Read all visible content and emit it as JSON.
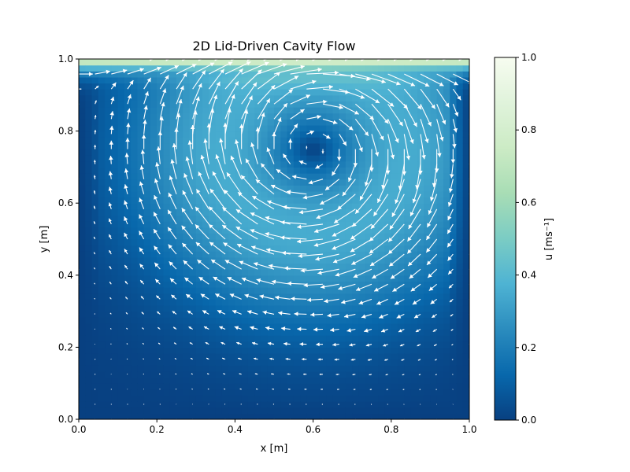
{
  "chart_data": {
    "type": "heatmap",
    "title": "2D Lid-Driven Cavity Flow",
    "xlabel": "x [m]",
    "ylabel": "y [m]",
    "xlim": [
      0,
      1
    ],
    "ylim": [
      0,
      1
    ],
    "x_ticks": [
      "0.0",
      "0.2",
      "0.4",
      "0.6",
      "0.8",
      "1.0"
    ],
    "y_ticks": [
      "0.0",
      "0.2",
      "0.4",
      "0.6",
      "0.8",
      "1.0"
    ],
    "grid": false,
    "colormap": "GnBu_r",
    "colormap_stops": [
      "#084081",
      "#0868ac",
      "#2b8cbe",
      "#4eb3d3",
      "#7bccc4",
      "#a8ddb5",
      "#ccebc5",
      "#e0f3db",
      "#f7fcf0"
    ],
    "vector_color": "#ffffff",
    "field": "speed magnitude u with overlaid velocity vectors (quiver)",
    "lid_velocity": 1.0,
    "vortex_center": [
      0.6,
      0.75
    ],
    "colorbar": {
      "label": "u [ms⁻¹]",
      "range": [
        0,
        1
      ],
      "ticks": [
        "0.0",
        "0.2",
        "0.4",
        "0.6",
        "0.8",
        "1.0"
      ]
    }
  }
}
